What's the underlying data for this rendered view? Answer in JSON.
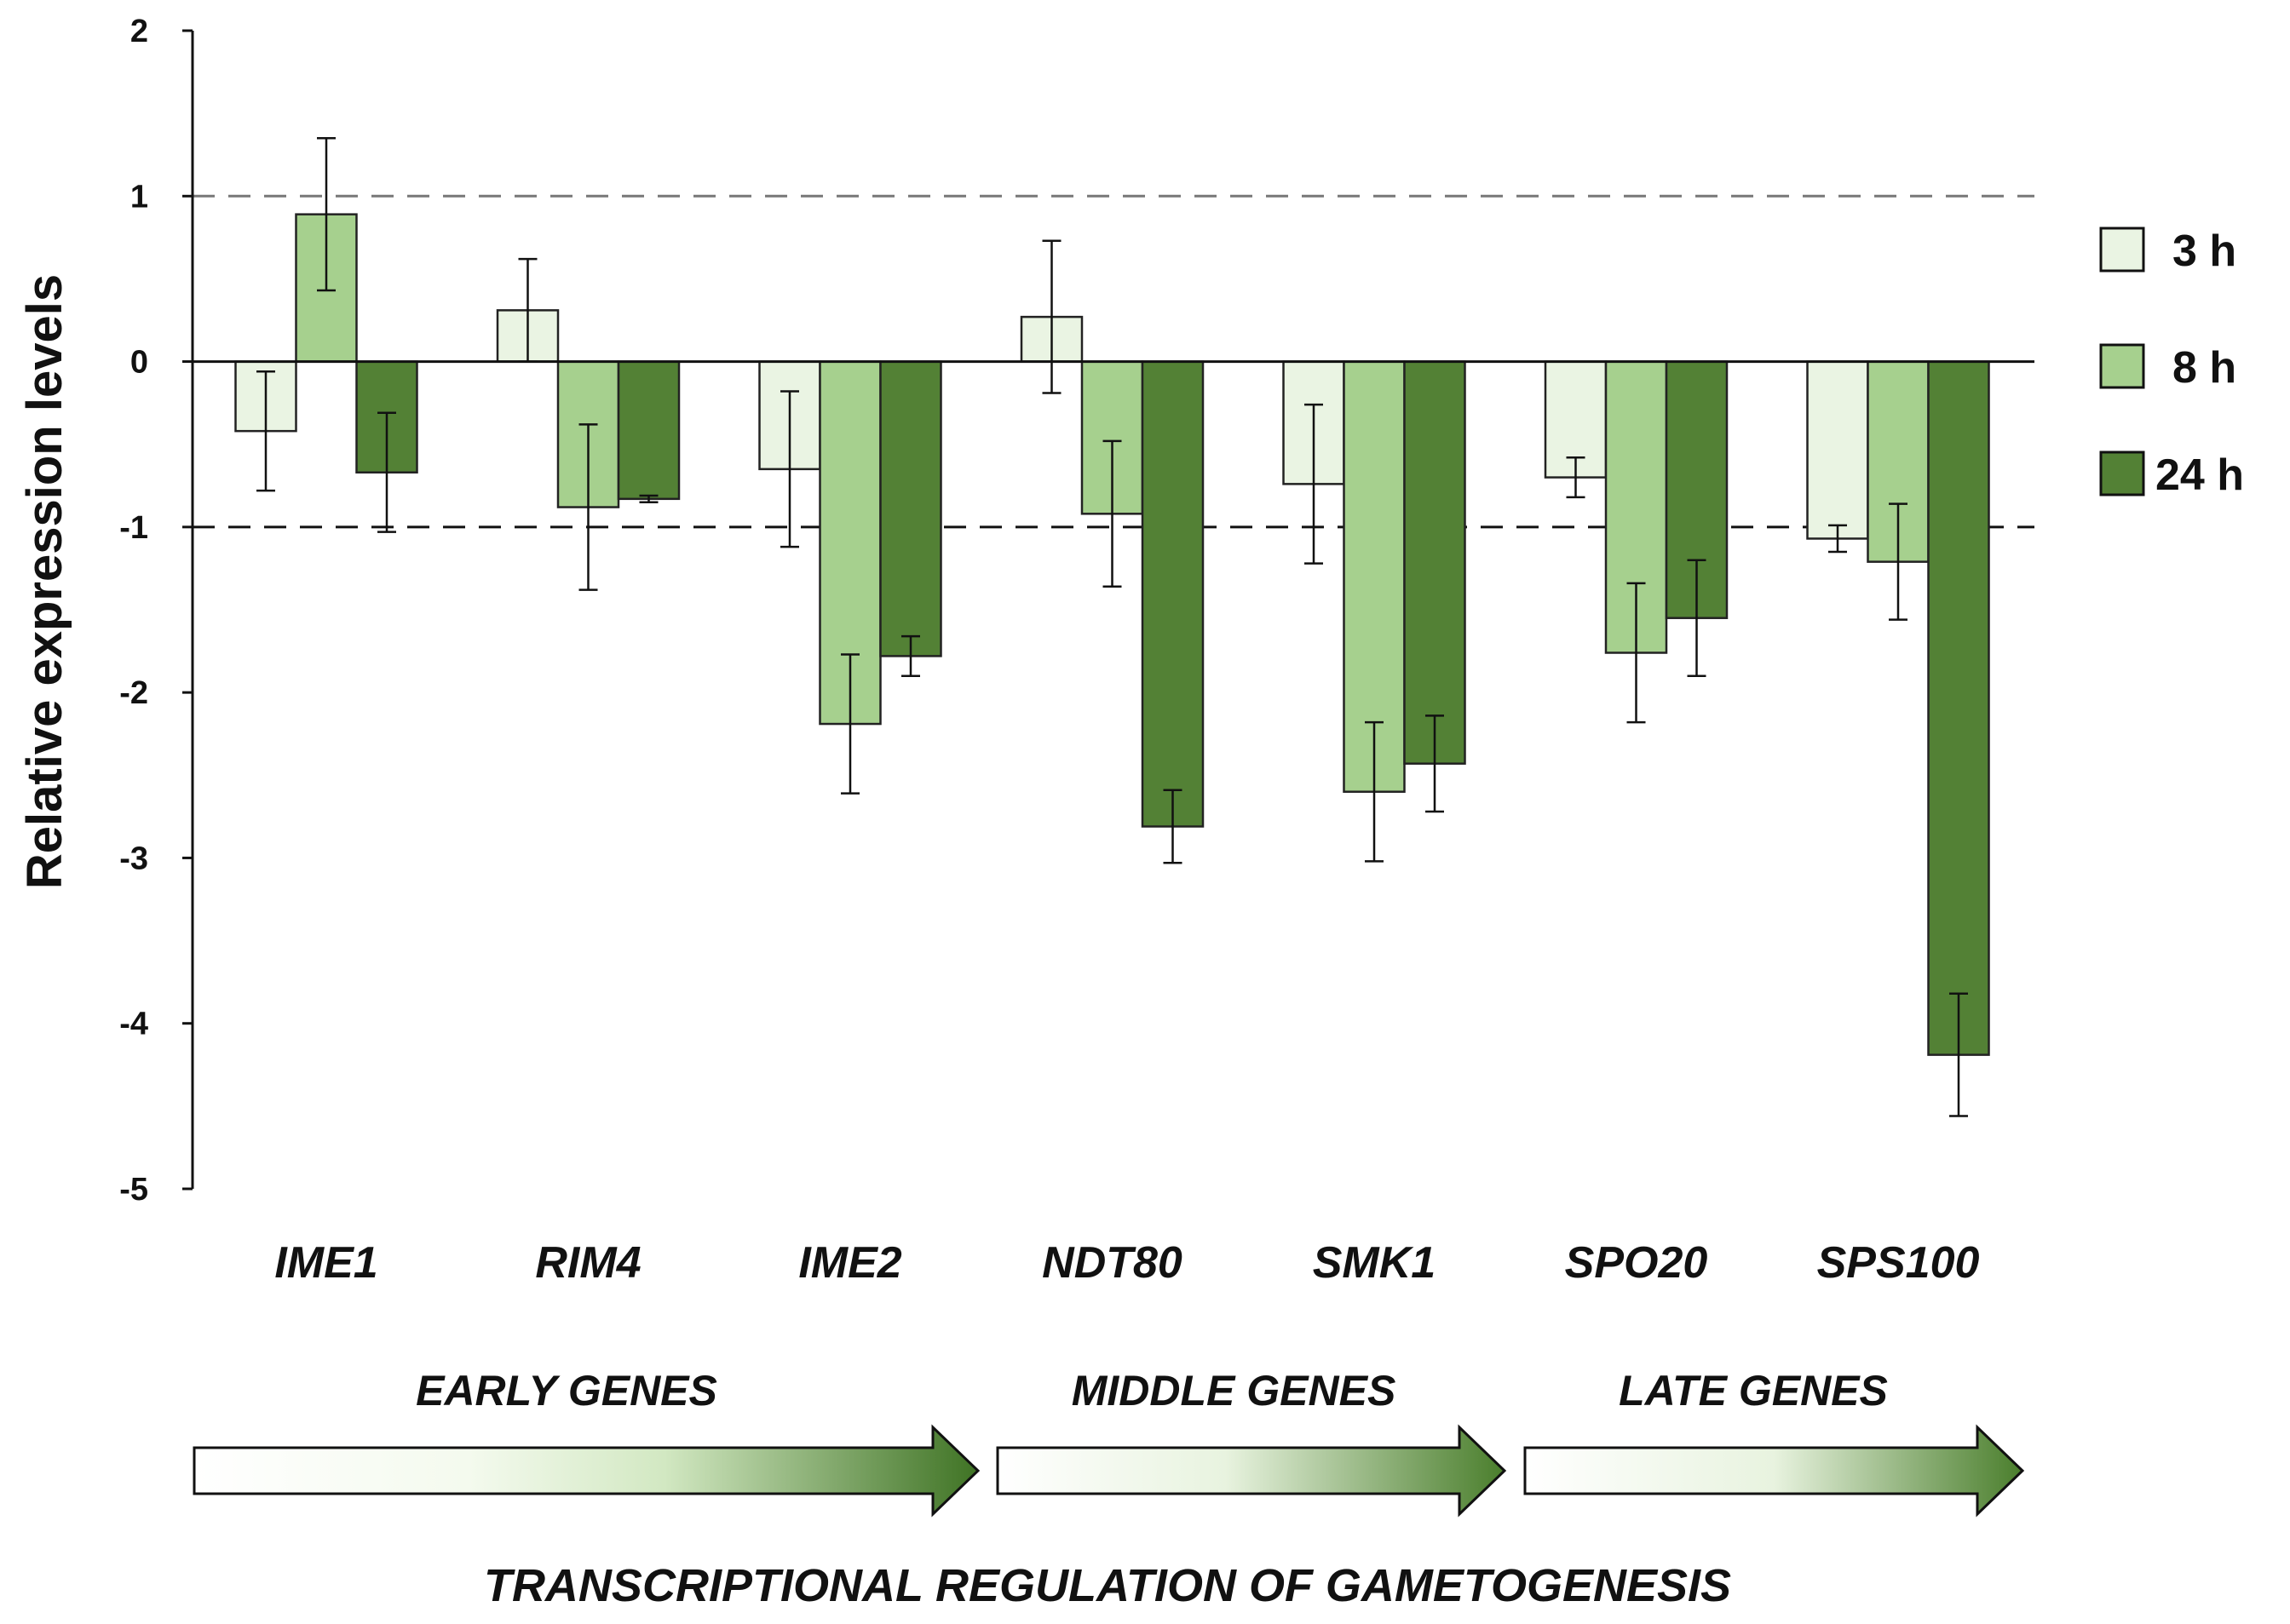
{
  "chart_data": {
    "type": "bar",
    "ylabel": "Relative expression levels",
    "xlabel": "TRANSCRIPTIONAL REGULATION OF GAMETOGENESIS",
    "ylim": [
      -5,
      2
    ],
    "yticks": [
      2,
      1,
      0,
      -1,
      -2,
      -3,
      -4,
      -5
    ],
    "reference_lines": [
      1,
      -1
    ],
    "categories": [
      "IME1",
      "RIM4",
      "IME2",
      "NDT80",
      "SMK1",
      "SPO20",
      "SPS100"
    ],
    "series": [
      {
        "name": "3 h",
        "color": "#eaf4e3",
        "values": [
          -0.42,
          0.31,
          -0.65,
          0.27,
          -0.74,
          -0.7,
          -1.07
        ],
        "errors": [
          0.36,
          0.31,
          0.47,
          0.46,
          0.48,
          0.12,
          0.08
        ]
      },
      {
        "name": "8 h",
        "color": "#a6d08e",
        "values": [
          0.89,
          -0.88,
          -2.19,
          -0.92,
          -2.6,
          -1.76,
          -1.21
        ],
        "errors": [
          0.46,
          0.5,
          0.42,
          0.44,
          0.42,
          0.42,
          0.35
        ]
      },
      {
        "name": "24 h",
        "color": "#538135",
        "values": [
          -0.67,
          -0.83,
          -1.78,
          -2.81,
          -2.43,
          -1.55,
          -4.19
        ],
        "errors": [
          0.36,
          0.02,
          0.12,
          0.22,
          0.29,
          0.35,
          0.37
        ]
      }
    ],
    "groups": [
      {
        "label": "EARLY GENES"
      },
      {
        "label": "MIDDLE GENES"
      },
      {
        "label": "LATE GENES"
      }
    ],
    "legend": "right"
  }
}
